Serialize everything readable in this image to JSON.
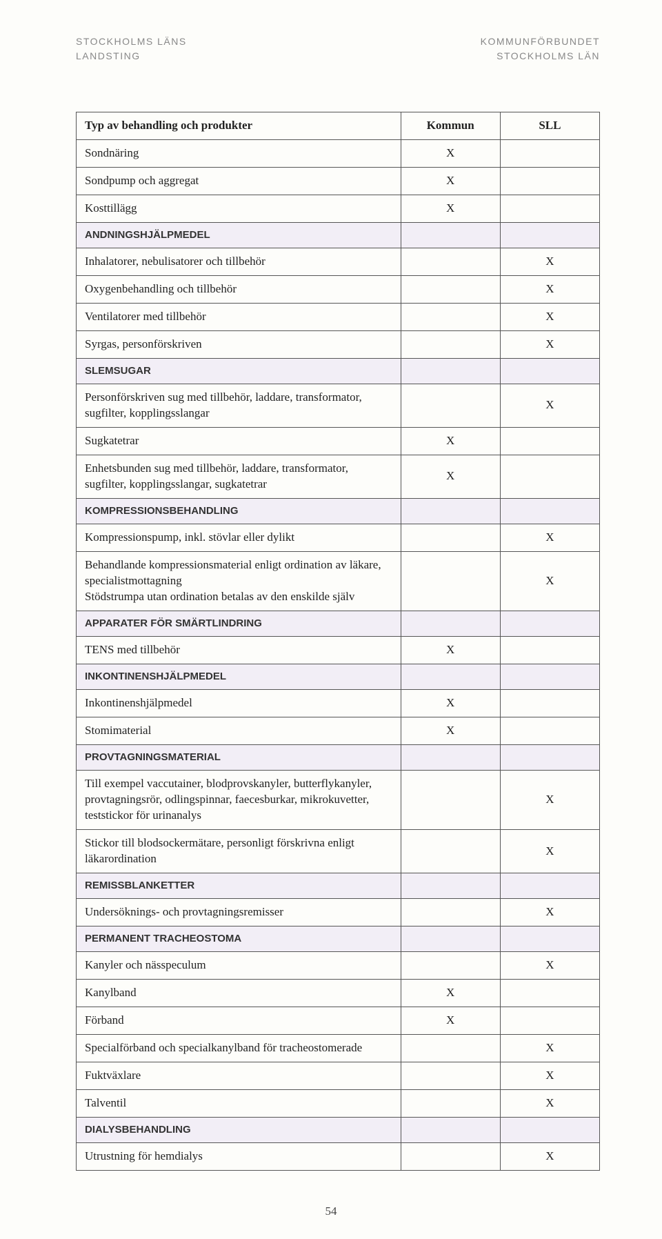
{
  "header": {
    "left_line1": "STOCKHOLMS LÄNS",
    "left_line2": "LANDSTING",
    "right_line1": "KOMMUNFÖRBUNDET",
    "right_line2": "STOCKHOLMS LÄN"
  },
  "table": {
    "columns": [
      "Typ av behandling och produkter",
      "Kommun",
      "SLL"
    ],
    "rows": [
      {
        "type": "row",
        "label": "Sondnäring",
        "kommun": "X",
        "sll": ""
      },
      {
        "type": "row",
        "label": "Sondpump och aggregat",
        "kommun": "X",
        "sll": ""
      },
      {
        "type": "row",
        "label": "Kosttillägg",
        "kommun": "X",
        "sll": ""
      },
      {
        "type": "section",
        "label": "ANDNINGSHJÄLPMEDEL"
      },
      {
        "type": "row",
        "label": "Inhalatorer, nebulisatorer och tillbehör",
        "kommun": "",
        "sll": "X"
      },
      {
        "type": "row",
        "label": "Oxygenbehandling och tillbehör",
        "kommun": "",
        "sll": "X"
      },
      {
        "type": "row",
        "label": "Ventilatorer med tillbehör",
        "kommun": "",
        "sll": "X"
      },
      {
        "type": "row",
        "label": "Syrgas, personförskriven",
        "kommun": "",
        "sll": "X"
      },
      {
        "type": "section",
        "label": "SLEMSUGAR"
      },
      {
        "type": "row",
        "label": "Personförskriven sug med tillbehör, laddare, transformator, sugfilter, kopplingsslangar",
        "kommun": "",
        "sll": "X"
      },
      {
        "type": "row",
        "label": "Sugkatetrar",
        "kommun": "X",
        "sll": ""
      },
      {
        "type": "row",
        "label": "Enhetsbunden sug med tillbehör, laddare, transformator, sugfilter, kopplingsslangar, sugkatetrar",
        "kommun": "X",
        "sll": ""
      },
      {
        "type": "section",
        "label": "KOMPRESSIONSBEHANDLING"
      },
      {
        "type": "row",
        "label": "Kompressionspump, inkl. stövlar eller dylikt",
        "kommun": "",
        "sll": "X"
      },
      {
        "type": "row",
        "label": "Behandlande kompressionsmaterial enligt ordination av läkare, specialistmottagning\nStödstrumpa utan ordination betalas av den enskilde själv",
        "kommun": "",
        "sll": "X"
      },
      {
        "type": "section",
        "label": "APPARATER FÖR SMÄRTLINDRING"
      },
      {
        "type": "row",
        "label": "TENS med tillbehör",
        "kommun": "X",
        "sll": ""
      },
      {
        "type": "section",
        "label": "INKONTINENSHJÄLPMEDEL"
      },
      {
        "type": "row",
        "label": "Inkontinenshjälpmedel",
        "kommun": "X",
        "sll": ""
      },
      {
        "type": "row",
        "label": "Stomimaterial",
        "kommun": "X",
        "sll": ""
      },
      {
        "type": "section",
        "label": "PROVTAGNINGSMATERIAL"
      },
      {
        "type": "row",
        "label": "Till exempel vaccutainer, blodprovskanyler, butterflykanyler, provtagningsrör, odlingspinnar, faecesburkar, mikrokuvetter, teststickor för urinanalys",
        "kommun": "",
        "sll": "X"
      },
      {
        "type": "row",
        "label": "Stickor till blodsockermätare, personligt förskrivna enligt läkarordination",
        "kommun": "",
        "sll": "X"
      },
      {
        "type": "section",
        "label": "REMISSBLANKETTER"
      },
      {
        "type": "row",
        "label": "Undersöknings- och provtagningsremisser",
        "kommun": "",
        "sll": "X"
      },
      {
        "type": "section",
        "label": "PERMANENT TRACHEOSTOMA"
      },
      {
        "type": "row",
        "label": "Kanyler och nässpeculum",
        "kommun": "",
        "sll": "X"
      },
      {
        "type": "row",
        "label": "Kanylband",
        "kommun": "X",
        "sll": ""
      },
      {
        "type": "row",
        "label": "Förband",
        "kommun": "X",
        "sll": ""
      },
      {
        "type": "row",
        "label": "Specialförband och specialkanylband för tracheostomerade",
        "kommun": "",
        "sll": "X"
      },
      {
        "type": "row",
        "label": "Fuktväxlare",
        "kommun": "",
        "sll": "X"
      },
      {
        "type": "row",
        "label": "Talventil",
        "kommun": "",
        "sll": "X"
      },
      {
        "type": "section",
        "label": "DIALYSBEHANDLING"
      },
      {
        "type": "row",
        "label": "Utrustning för hemdialys",
        "kommun": "",
        "sll": "X"
      }
    ]
  },
  "page_number": "54",
  "colors": {
    "page_bg": "#fdfdfa",
    "section_bg": "#f2eef6",
    "border": "#555555",
    "header_text": "#888888"
  }
}
